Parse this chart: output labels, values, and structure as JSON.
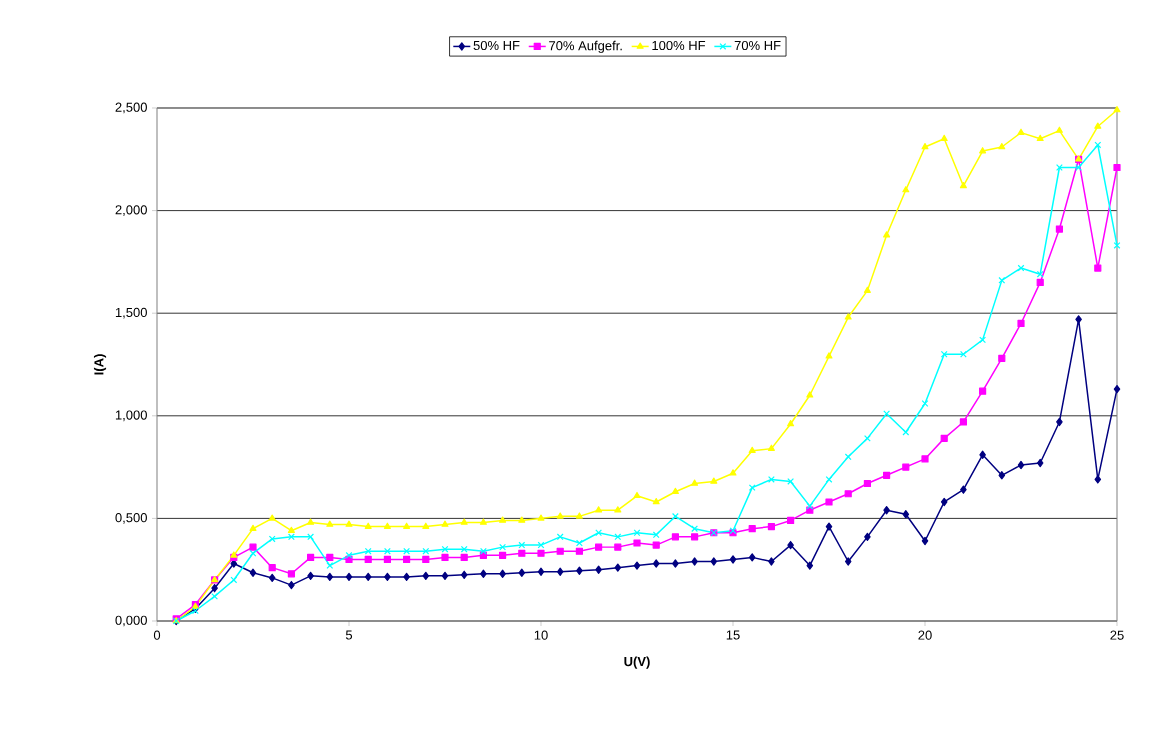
{
  "chart_data": {
    "type": "line",
    "xlabel": "U(V)",
    "ylabel": "I(A)",
    "x": [
      0.5,
      1,
      1.5,
      2,
      2.5,
      3,
      3.5,
      4,
      4.5,
      5,
      5.5,
      6,
      6.5,
      7,
      7.5,
      8,
      8.5,
      9,
      9.5,
      10,
      10.5,
      11,
      11.5,
      12,
      12.5,
      13,
      13.5,
      14,
      14.5,
      15,
      15.5,
      16,
      16.5,
      17,
      17.5,
      18,
      18.5,
      19,
      19.5,
      20,
      20.5,
      21,
      21.5,
      22,
      22.5,
      23,
      23.5,
      24,
      24.5,
      25
    ],
    "series": [
      {
        "name": "50% HF",
        "color": "#000080",
        "marker": "diamond",
        "values": [
          0.0,
          0.06,
          0.16,
          0.28,
          0.235,
          0.21,
          0.175,
          0.22,
          0.215,
          0.215,
          0.215,
          0.215,
          0.215,
          0.22,
          0.22,
          0.225,
          0.23,
          0.23,
          0.235,
          0.24,
          0.24,
          0.245,
          0.25,
          0.26,
          0.27,
          0.28,
          0.28,
          0.29,
          0.29,
          0.3,
          0.31,
          0.29,
          0.37,
          0.27,
          0.46,
          0.29,
          0.41,
          0.54,
          0.52,
          0.39,
          0.58,
          0.64,
          0.81,
          0.71,
          0.76,
          0.77,
          0.97,
          1.47,
          0.69,
          1.13
        ]
      },
      {
        "name": "70% Aufgefr.",
        "color": "#ff00ff",
        "marker": "square",
        "values": [
          0.01,
          0.08,
          0.2,
          0.31,
          0.36,
          0.26,
          0.23,
          0.31,
          0.31,
          0.3,
          0.3,
          0.3,
          0.3,
          0.3,
          0.31,
          0.31,
          0.32,
          0.32,
          0.33,
          0.33,
          0.34,
          0.34,
          0.36,
          0.36,
          0.38,
          0.37,
          0.41,
          0.41,
          0.43,
          0.43,
          0.45,
          0.46,
          0.49,
          0.54,
          0.58,
          0.62,
          0.67,
          0.71,
          0.75,
          0.79,
          0.89,
          0.97,
          1.12,
          1.28,
          1.45,
          1.65,
          1.91,
          2.25,
          1.72,
          2.21
        ]
      },
      {
        "name": "100% HF",
        "color": "#ffff00",
        "marker": "triangle",
        "values": [
          0.0,
          0.07,
          0.2,
          0.32,
          0.45,
          0.5,
          0.44,
          0.48,
          0.47,
          0.47,
          0.46,
          0.46,
          0.46,
          0.46,
          0.47,
          0.48,
          0.48,
          0.49,
          0.49,
          0.5,
          0.51,
          0.51,
          0.54,
          0.54,
          0.61,
          0.58,
          0.63,
          0.67,
          0.68,
          0.72,
          0.83,
          0.84,
          0.96,
          1.1,
          1.29,
          1.48,
          1.61,
          1.88,
          2.1,
          2.31,
          2.35,
          2.12,
          2.29,
          2.31,
          2.38,
          2.35,
          2.39,
          2.25,
          2.41,
          2.49
        ]
      },
      {
        "name": "70% HF",
        "color": "#00ffff",
        "marker": "cross",
        "values": [
          0.0,
          0.05,
          0.12,
          0.2,
          0.33,
          0.4,
          0.41,
          0.41,
          0.27,
          0.32,
          0.34,
          0.34,
          0.34,
          0.34,
          0.35,
          0.35,
          0.34,
          0.36,
          0.37,
          0.37,
          0.41,
          0.38,
          0.43,
          0.41,
          0.43,
          0.42,
          0.51,
          0.45,
          0.43,
          0.44,
          0.65,
          0.69,
          0.68,
          0.56,
          0.69,
          0.8,
          0.89,
          1.01,
          0.92,
          1.06,
          1.3,
          1.3,
          1.37,
          1.66,
          1.72,
          1.69,
          2.21,
          2.21,
          2.32,
          1.83
        ]
      }
    ],
    "xlim": [
      0,
      25
    ],
    "xticks": [
      0,
      5,
      10,
      15,
      20,
      25
    ],
    "ylim": [
      0,
      2.5
    ],
    "yticks": [
      {
        "value": 0,
        "label": "0,000"
      },
      {
        "value": 0.5,
        "label": "0,500"
      },
      {
        "value": 1,
        "label": "1,000"
      },
      {
        "value": 1.5,
        "label": "1,500"
      },
      {
        "value": 2,
        "label": "2,000"
      },
      {
        "value": 2.5,
        "label": "2,500"
      }
    ],
    "grid": "y",
    "legend": "top"
  }
}
